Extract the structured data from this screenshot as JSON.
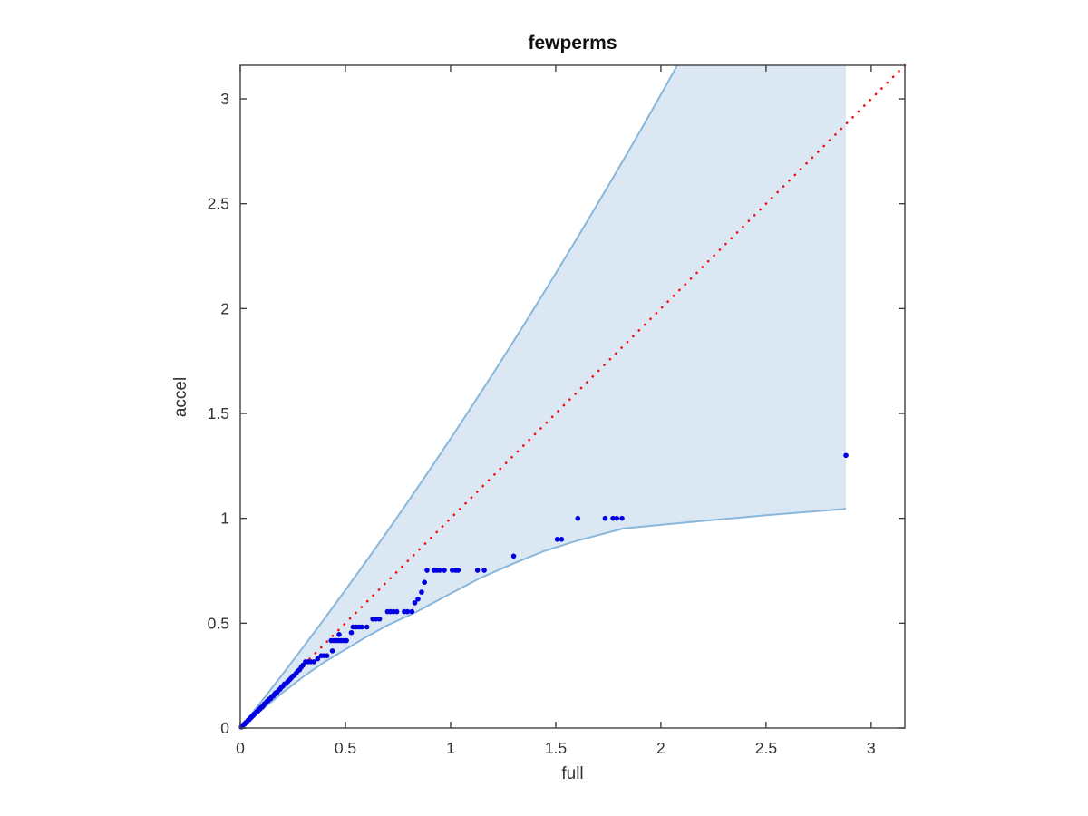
{
  "figure": {
    "title": "fewperms"
  },
  "chart_data": {
    "type": "scatter",
    "title": "fewperms",
    "xlabel": "full",
    "ylabel": "accel",
    "xlim": [
      0,
      3.16
    ],
    "ylim": [
      0,
      3.16
    ],
    "grid": false,
    "legend_position": "none",
    "xticks": {
      "values": [
        0,
        0.5,
        1,
        1.5,
        2,
        2.5,
        3
      ],
      "labels": [
        "0",
        "0.5",
        "1",
        "1.5",
        "2",
        "2.5",
        "3"
      ]
    },
    "yticks": {
      "values": [
        0,
        0.5,
        1,
        1.5,
        2,
        2.5,
        3
      ],
      "labels": [
        "0",
        "0.5",
        "1",
        "1.5",
        "2",
        "2.5",
        "3"
      ]
    },
    "colors": {
      "band_fill": "#dbe8f3",
      "band_edge": "#88b7db",
      "reference_line": "#f20d0d",
      "marker": "#0000e0",
      "axis": "#404040",
      "text": "#333333"
    },
    "band": {
      "name": "confidence-band",
      "right_edge_x": 2.88,
      "upper": [
        [
          0,
          0
        ],
        [
          0.1,
          0.126
        ],
        [
          0.2,
          0.255
        ],
        [
          0.3,
          0.387
        ],
        [
          0.4,
          0.521
        ],
        [
          0.5,
          0.658
        ],
        [
          0.6,
          0.797
        ],
        [
          0.7,
          0.939
        ],
        [
          0.8,
          1.083
        ],
        [
          0.9,
          1.23
        ],
        [
          1.0,
          1.38
        ],
        [
          1.1,
          1.532
        ],
        [
          1.2,
          1.687
        ],
        [
          1.3,
          1.845
        ],
        [
          1.4,
          2.005
        ],
        [
          1.5,
          2.168
        ],
        [
          1.6,
          2.333
        ],
        [
          1.7,
          2.501
        ],
        [
          1.8,
          2.671
        ],
        [
          1.9,
          2.844
        ],
        [
          2.0,
          3.02
        ],
        [
          2.078,
          3.16
        ]
      ],
      "lower": [
        [
          0,
          0
        ],
        [
          0.1,
          0.085
        ],
        [
          0.2,
          0.168
        ],
        [
          0.3,
          0.245
        ],
        [
          0.4,
          0.315
        ],
        [
          0.5,
          0.375
        ],
        [
          0.6,
          0.435
        ],
        [
          0.7,
          0.49
        ],
        [
          0.84,
          0.555
        ],
        [
          0.97,
          0.625
        ],
        [
          1.14,
          0.715
        ],
        [
          1.3,
          0.785
        ],
        [
          1.445,
          0.844
        ],
        [
          1.6,
          0.893
        ],
        [
          1.824,
          0.952
        ],
        [
          2.2,
          0.988
        ],
        [
          2.5,
          1.015
        ],
        [
          2.88,
          1.045
        ]
      ]
    },
    "reference_line": {
      "name": "identity-line",
      "style": "dotted",
      "from": [
        0,
        0
      ],
      "to": [
        3.16,
        3.16
      ]
    },
    "marker": {
      "shape": "point",
      "radius_px": 2.8
    },
    "series": [
      {
        "name": "accel vs full quantiles",
        "points": [
          [
            0.005,
            0.005
          ],
          [
            0.01,
            0.008
          ],
          [
            0.013,
            0.013
          ],
          [
            0.018,
            0.018
          ],
          [
            0.022,
            0.02
          ],
          [
            0.027,
            0.027
          ],
          [
            0.032,
            0.03
          ],
          [
            0.037,
            0.037
          ],
          [
            0.042,
            0.04
          ],
          [
            0.047,
            0.047
          ],
          [
            0.052,
            0.05
          ],
          [
            0.057,
            0.057
          ],
          [
            0.062,
            0.06
          ],
          [
            0.068,
            0.068
          ],
          [
            0.073,
            0.07
          ],
          [
            0.078,
            0.078
          ],
          [
            0.083,
            0.08
          ],
          [
            0.088,
            0.088
          ],
          [
            0.093,
            0.09
          ],
          [
            0.098,
            0.098
          ],
          [
            0.104,
            0.1
          ],
          [
            0.11,
            0.108
          ],
          [
            0.115,
            0.115
          ],
          [
            0.12,
            0.118
          ],
          [
            0.126,
            0.126
          ],
          [
            0.132,
            0.13
          ],
          [
            0.138,
            0.138
          ],
          [
            0.144,
            0.14
          ],
          [
            0.15,
            0.15
          ],
          [
            0.156,
            0.152
          ],
          [
            0.162,
            0.16
          ],
          [
            0.168,
            0.168
          ],
          [
            0.175,
            0.17
          ],
          [
            0.182,
            0.18
          ],
          [
            0.189,
            0.185
          ],
          [
            0.196,
            0.195
          ],
          [
            0.203,
            0.2
          ],
          [
            0.21,
            0.21
          ],
          [
            0.218,
            0.212
          ],
          [
            0.226,
            0.222
          ],
          [
            0.234,
            0.23
          ],
          [
            0.242,
            0.238
          ],
          [
            0.25,
            0.248
          ],
          [
            0.258,
            0.252
          ],
          [
            0.266,
            0.262
          ],
          [
            0.274,
            0.272
          ],
          [
            0.282,
            0.278
          ],
          [
            0.29,
            0.29
          ],
          [
            0.298,
            0.3
          ],
          [
            0.31,
            0.316
          ],
          [
            0.322,
            0.316
          ],
          [
            0.335,
            0.316
          ],
          [
            0.35,
            0.316
          ],
          [
            0.368,
            0.33
          ],
          [
            0.385,
            0.345
          ],
          [
            0.398,
            0.345
          ],
          [
            0.412,
            0.345
          ],
          [
            0.438,
            0.368
          ],
          [
            0.432,
            0.417
          ],
          [
            0.445,
            0.417
          ],
          [
            0.457,
            0.417
          ],
          [
            0.468,
            0.417
          ],
          [
            0.48,
            0.417
          ],
          [
            0.492,
            0.417
          ],
          [
            0.505,
            0.417
          ],
          [
            0.47,
            0.446
          ],
          [
            0.528,
            0.455
          ],
          [
            0.536,
            0.482
          ],
          [
            0.55,
            0.482
          ],
          [
            0.564,
            0.482
          ],
          [
            0.578,
            0.482
          ],
          [
            0.602,
            0.482
          ],
          [
            0.63,
            0.52
          ],
          [
            0.645,
            0.52
          ],
          [
            0.662,
            0.52
          ],
          [
            0.7,
            0.555
          ],
          [
            0.714,
            0.555
          ],
          [
            0.728,
            0.555
          ],
          [
            0.744,
            0.555
          ],
          [
            0.78,
            0.555
          ],
          [
            0.795,
            0.555
          ],
          [
            0.816,
            0.555
          ],
          [
            0.83,
            0.597
          ],
          [
            0.845,
            0.615
          ],
          [
            0.862,
            0.648
          ],
          [
            0.876,
            0.695
          ],
          [
            0.888,
            0.752
          ],
          [
            0.921,
            0.752
          ],
          [
            0.934,
            0.752
          ],
          [
            0.948,
            0.752
          ],
          [
            0.97,
            0.752
          ],
          [
            1.008,
            0.752
          ],
          [
            1.024,
            0.752
          ],
          [
            1.036,
            0.752
          ],
          [
            1.128,
            0.752
          ],
          [
            1.16,
            0.752
          ],
          [
            1.3,
            0.82
          ],
          [
            1.507,
            0.9
          ],
          [
            1.528,
            0.9
          ],
          [
            1.605,
            1.0
          ],
          [
            1.735,
            1.0
          ],
          [
            1.772,
            1.0
          ],
          [
            1.79,
            1.0
          ],
          [
            1.815,
            1.0
          ],
          [
            2.88,
            1.3
          ]
        ]
      }
    ]
  }
}
